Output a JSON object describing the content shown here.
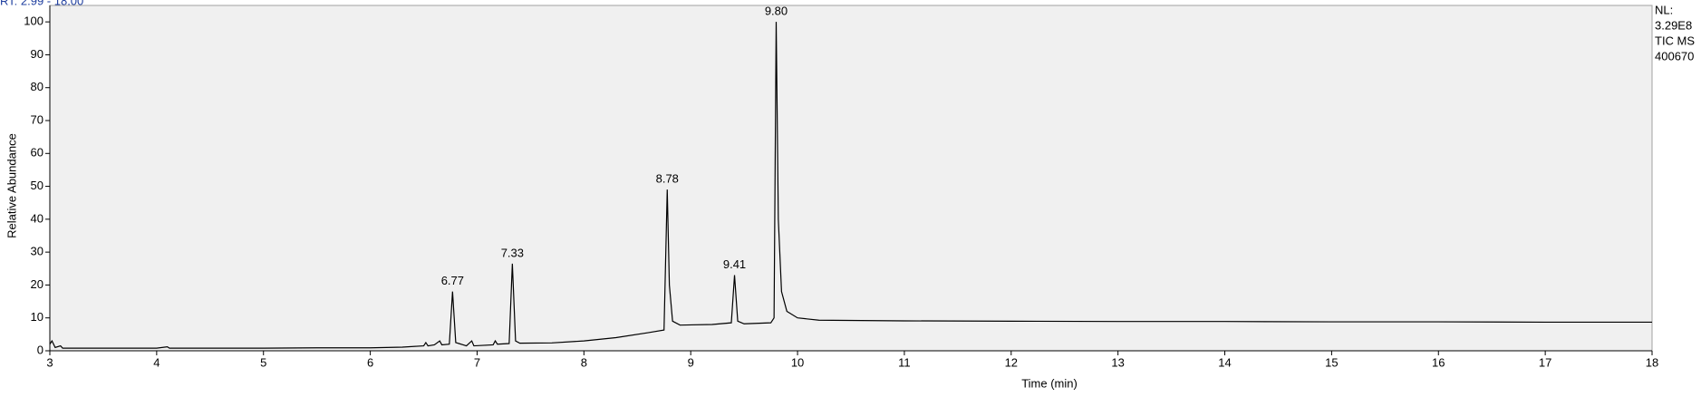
{
  "chart_data": {
    "type": "line",
    "header": "RT: 2.99 - 18.00",
    "info": [
      "NL:",
      "3.29E8",
      "TIC MS",
      "400670"
    ],
    "xlabel": "Time (min)",
    "ylabel": "Relative Abundance",
    "xlim": [
      3,
      18
    ],
    "ylim": [
      0,
      105
    ],
    "xticks": [
      3,
      4,
      5,
      6,
      7,
      8,
      9,
      10,
      11,
      12,
      13,
      14,
      15,
      16,
      17,
      18
    ],
    "yticks": [
      0,
      10,
      20,
      30,
      40,
      50,
      60,
      70,
      80,
      90,
      100
    ],
    "color": "#000000",
    "x": [
      3.0,
      3.02,
      3.05,
      3.1,
      3.12,
      3.5,
      4.0,
      4.1,
      4.12,
      5.0,
      5.5,
      6.0,
      6.3,
      6.5,
      6.52,
      6.54,
      6.6,
      6.65,
      6.67,
      6.74,
      6.77,
      6.8,
      6.9,
      6.95,
      6.97,
      7.15,
      7.17,
      7.19,
      7.3,
      7.33,
      7.36,
      7.4,
      7.7,
      8.0,
      8.3,
      8.6,
      8.75,
      8.78,
      8.8,
      8.83,
      8.9,
      9.2,
      9.38,
      9.41,
      9.44,
      9.5,
      9.75,
      9.78,
      9.8,
      9.82,
      9.85,
      9.9,
      10.0,
      10.2,
      11,
      12,
      13,
      14,
      15,
      16,
      17,
      18
    ],
    "values": [
      2,
      3,
      1,
      1.5,
      0.8,
      0.8,
      0.8,
      1.2,
      0.8,
      0.8,
      0.9,
      0.9,
      1.1,
      1.5,
      2.5,
      1.5,
      1.8,
      3,
      1.8,
      2,
      18,
      2.5,
      1.5,
      3,
      1.5,
      1.8,
      3,
      2,
      2.2,
      26.5,
      3,
      2.3,
      2.4,
      3,
      4,
      5.5,
      6.3,
      49,
      20,
      9,
      7.8,
      8,
      8.5,
      23,
      9,
      8.2,
      8.5,
      10,
      100,
      40,
      18,
      12,
      10,
      9.3,
      9.1,
      9,
      8.9,
      8.9,
      8.8,
      8.8,
      8.7,
      8.7
    ],
    "peak_labels": [
      6.77,
      7.33,
      8.78,
      9.41,
      {
        "value": 9.8,
        "label": "9.80"
      }
    ]
  }
}
